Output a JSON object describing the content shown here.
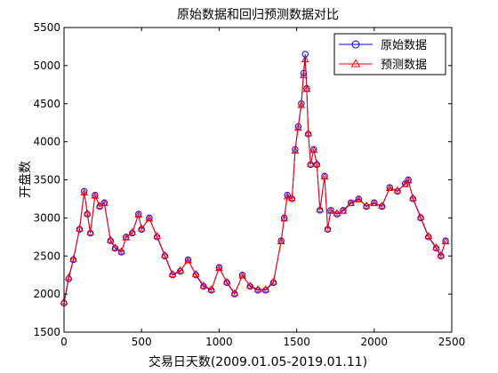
{
  "chart_data": {
    "type": "line",
    "title": "原始数据和回归预测数据对比",
    "xlabel": "交易日天数(2009.01.05-2019.01.11)",
    "ylabel": "开盘数",
    "xlim": [
      0,
      2500
    ],
    "ylim": [
      1500,
      5500
    ],
    "xticks": [
      0,
      500,
      1000,
      1500,
      2000,
      2500
    ],
    "yticks": [
      1500,
      2000,
      2500,
      3000,
      3500,
      4000,
      4500,
      5000,
      5500
    ],
    "grid": false,
    "legend_position": "top-right",
    "series": [
      {
        "name": "原始数据",
        "color": "#0000ff",
        "marker": "circle",
        "x": [
          0,
          30,
          60,
          100,
          130,
          150,
          170,
          200,
          230,
          260,
          300,
          330,
          370,
          400,
          440,
          480,
          500,
          550,
          600,
          650,
          700,
          750,
          800,
          850,
          900,
          950,
          1000,
          1050,
          1100,
          1150,
          1200,
          1250,
          1300,
          1350,
          1400,
          1420,
          1440,
          1470,
          1490,
          1510,
          1530,
          1545,
          1555,
          1565,
          1575,
          1590,
          1610,
          1630,
          1650,
          1680,
          1700,
          1720,
          1760,
          1800,
          1850,
          1900,
          1950,
          2000,
          2050,
          2100,
          2150,
          2200,
          2220,
          2250,
          2300,
          2350,
          2400,
          2430,
          2460
        ],
        "values": [
          1880,
          2200,
          2450,
          2850,
          3350,
          3050,
          2800,
          3300,
          3150,
          3200,
          2700,
          2600,
          2550,
          2750,
          2800,
          3050,
          2850,
          3000,
          2750,
          2500,
          2250,
          2300,
          2450,
          2250,
          2100,
          2050,
          2350,
          2150,
          2000,
          2250,
          2100,
          2050,
          2050,
          2150,
          2700,
          3000,
          3300,
          3250,
          3900,
          4200,
          4500,
          4900,
          5150,
          4700,
          4100,
          3700,
          3900,
          3700,
          3100,
          3550,
          2850,
          3100,
          3050,
          3100,
          3200,
          3250,
          3150,
          3200,
          3150,
          3400,
          3350,
          3450,
          3500,
          3250,
          3000,
          2750,
          2600,
          2500,
          2700
        ]
      },
      {
        "name": "预测数据",
        "color": "#ff0000",
        "marker": "triangle",
        "x": [
          0,
          30,
          60,
          100,
          130,
          150,
          170,
          200,
          230,
          260,
          300,
          330,
          370,
          400,
          440,
          480,
          500,
          550,
          600,
          650,
          700,
          750,
          800,
          850,
          900,
          950,
          1000,
          1050,
          1100,
          1150,
          1200,
          1250,
          1300,
          1350,
          1400,
          1420,
          1440,
          1470,
          1490,
          1510,
          1530,
          1545,
          1555,
          1565,
          1575,
          1590,
          1610,
          1630,
          1650,
          1680,
          1700,
          1720,
          1760,
          1800,
          1850,
          1900,
          1950,
          2000,
          2050,
          2100,
          2150,
          2200,
          2220,
          2250,
          2300,
          2350,
          2400,
          2430,
          2460
        ],
        "values": [
          1900,
          2220,
          2460,
          2860,
          3330,
          3060,
          2810,
          3290,
          3160,
          3190,
          2710,
          2610,
          2560,
          2740,
          2810,
          3040,
          2860,
          2990,
          2760,
          2510,
          2260,
          2310,
          2440,
          2260,
          2110,
          2060,
          2340,
          2160,
          2010,
          2240,
          2110,
          2060,
          2060,
          2160,
          2690,
          2990,
          3280,
          3260,
          3880,
          4180,
          4480,
          4870,
          5080,
          4690,
          4110,
          3710,
          3890,
          3710,
          3110,
          3540,
          2860,
          3090,
          3060,
          3090,
          3190,
          3240,
          3160,
          3190,
          3160,
          3390,
          3360,
          3440,
          3490,
          3260,
          3010,
          2760,
          2610,
          2510,
          2690
        ]
      }
    ]
  }
}
